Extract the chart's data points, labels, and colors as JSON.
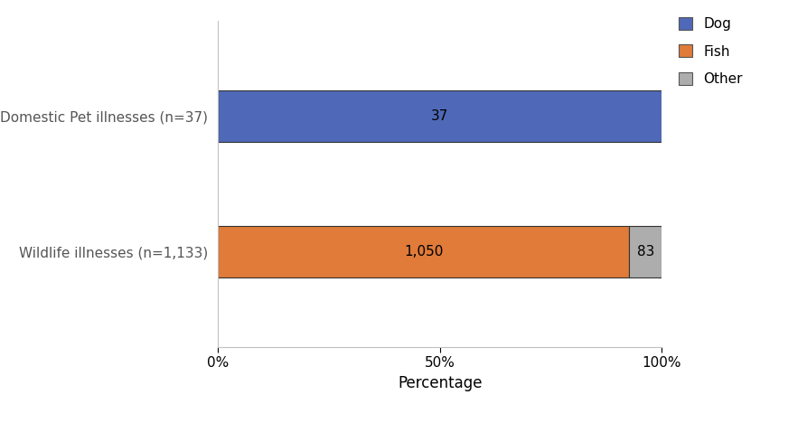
{
  "categories": [
    "Wildlife illnesses (n=1,133)",
    "Domestic Pet illnesses (n=37)"
  ],
  "dog_values": [
    0,
    37
  ],
  "fish_values": [
    1050,
    0
  ],
  "other_values": [
    83,
    0
  ],
  "totals": [
    1133,
    37
  ],
  "dog_color": "#4F69B8",
  "fish_color": "#E07B39",
  "other_color": "#ADADAD",
  "dog_label": "Dog",
  "fish_label": "Fish",
  "other_label": "Other",
  "xlabel": "Percentage",
  "xlim": [
    0,
    1.0
  ],
  "xticks": [
    0,
    0.5,
    1.0
  ],
  "xticklabels": [
    "0%",
    "50%",
    "100%"
  ],
  "bar_label_dog": [
    "",
    "37"
  ],
  "bar_label_fish": [
    "1,050",
    ""
  ],
  "bar_label_other": [
    "83",
    ""
  ],
  "background_color": "#FFFFFF",
  "bar_height": 0.38,
  "label_fontsize": 11,
  "tick_fontsize": 11,
  "xlabel_fontsize": 12,
  "legend_fontsize": 11,
  "ytick_fontsize": 11
}
